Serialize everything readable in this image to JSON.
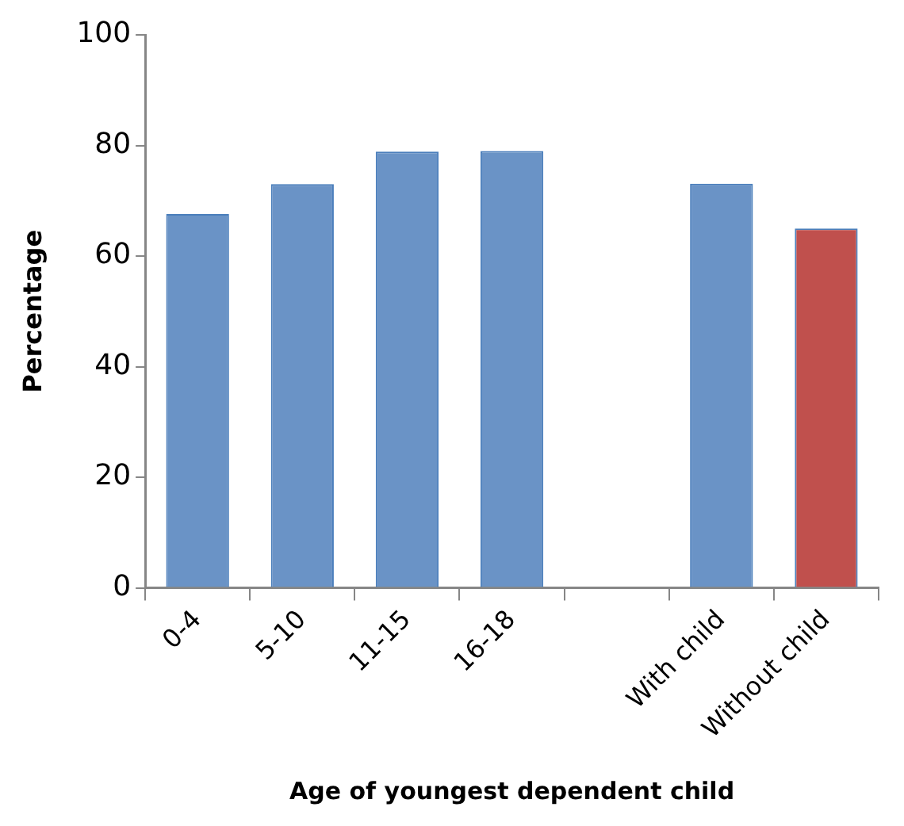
{
  "chart_data": {
    "type": "bar",
    "xlabel": "Age of youngest dependent child",
    "ylabel": "Percentage",
    "categories": [
      "0-4",
      "5-10",
      "11-15",
      "16-18",
      null,
      "With child",
      "Without child"
    ],
    "values": [
      67.6,
      73.0,
      78.9,
      79.0,
      null,
      73.1,
      65.0
    ],
    "colors": [
      "#6a93c6",
      "#6a93c6",
      "#6a93c6",
      "#6a93c6",
      "#6a93c6",
      "#6a93c6",
      "#c0504d"
    ],
    "ylim": [
      0,
      100
    ],
    "yticks": [
      0,
      20,
      40,
      60,
      80,
      100
    ],
    "grid": false,
    "legend": false
  }
}
